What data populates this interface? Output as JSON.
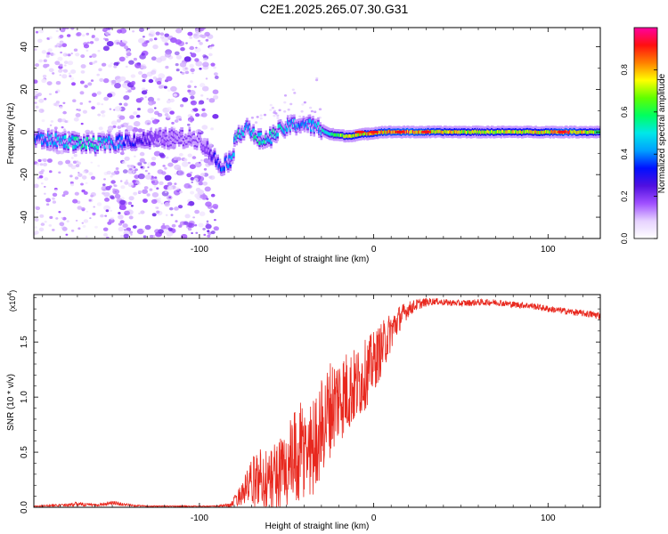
{
  "title": "C2E1.2025.265.07.30.G31",
  "colors": {
    "snr_line": "#e8281e",
    "axis": "#000000",
    "background": "#ffffff"
  },
  "chart_data": [
    {
      "type": "heatmap",
      "name": "spectrogram",
      "xlabel": "Height of straight line (km)",
      "ylabel": "Frequency (Hz)",
      "xlim": [
        -195,
        130
      ],
      "ylim": [
        -50,
        49
      ],
      "xticks": [
        -100,
        0,
        100
      ],
      "xticklabels": [
        "-100",
        "0",
        "100"
      ],
      "yticks": [
        -40,
        -20,
        0,
        20,
        40
      ],
      "yticklabels": [
        "-40",
        "-20",
        "0",
        "20",
        "40"
      ],
      "colorbar": {
        "label": "Normalized spectral amplitude",
        "range": [
          0.0,
          1.0
        ],
        "ticks": [
          0.0,
          0.2,
          0.4,
          0.6,
          0.8
        ],
        "ticklabels": [
          "0.0",
          "0.2",
          "0.4",
          "0.6",
          "0.8"
        ],
        "colormap": [
          "#ffffff",
          "#e6d2ff",
          "#a050ff",
          "#5010e0",
          "#0010ff",
          "#00a0ff",
          "#00e8e8",
          "#00ff60",
          "#60ff00",
          "#ffff00",
          "#ff8000",
          "#ff1010",
          "#ff00a0"
        ]
      },
      "signal_track": [
        {
          "x": -195,
          "y": -3,
          "amp": 0.35
        },
        {
          "x": -180,
          "y": -4,
          "amp": 0.45
        },
        {
          "x": -170,
          "y": -5,
          "amp": 0.5
        },
        {
          "x": -160,
          "y": -6,
          "amp": 0.5
        },
        {
          "x": -150,
          "y": -5,
          "amp": 0.45
        },
        {
          "x": -140,
          "y": -4,
          "amp": 0.3
        },
        {
          "x": -120,
          "y": -3,
          "amp": 0.15
        },
        {
          "x": -100,
          "y": -3,
          "amp": 0.1
        },
        {
          "x": -88,
          "y": -16,
          "amp": 0.35
        },
        {
          "x": -82,
          "y": -13,
          "amp": 0.4
        },
        {
          "x": -78,
          "y": -1,
          "amp": 0.5
        },
        {
          "x": -72,
          "y": 3,
          "amp": 0.45
        },
        {
          "x": -68,
          "y": -3,
          "amp": 0.5
        },
        {
          "x": -62,
          "y": -4,
          "amp": 0.5
        },
        {
          "x": -55,
          "y": 0,
          "amp": 0.5
        },
        {
          "x": -48,
          "y": 3,
          "amp": 0.45
        },
        {
          "x": -40,
          "y": 4,
          "amp": 0.4
        },
        {
          "x": -32,
          "y": 2,
          "amp": 0.45
        },
        {
          "x": -25,
          "y": -1,
          "amp": 0.55
        },
        {
          "x": -15,
          "y": -2,
          "amp": 0.7
        },
        {
          "x": -5,
          "y": -1,
          "amp": 0.75
        },
        {
          "x": 5,
          "y": 0,
          "amp": 0.8
        },
        {
          "x": 20,
          "y": 0,
          "amp": 0.85
        },
        {
          "x": 40,
          "y": 0,
          "amp": 0.75
        },
        {
          "x": 60,
          "y": 0,
          "amp": 0.7
        },
        {
          "x": 80,
          "y": 0,
          "amp": 0.72
        },
        {
          "x": 100,
          "y": 0,
          "amp": 0.75
        },
        {
          "x": 110,
          "y": 0,
          "amp": 0.85
        },
        {
          "x": 130,
          "y": 0,
          "amp": 0.65
        }
      ]
    },
    {
      "type": "line",
      "name": "snr",
      "xlabel": "Height of straight line (km)",
      "ylabel": "SNR (10 * v/v)",
      "yscale_label": "(x10",
      "yscale_exp": "4",
      "yscale_close": ")",
      "xlim": [
        -195,
        130
      ],
      "ylim": [
        0,
        1.93
      ],
      "xticks": [
        -100,
        0,
        100
      ],
      "xticklabels": [
        "-100",
        "0",
        "100"
      ],
      "yticks": [
        0.0,
        0.5,
        1.0,
        1.5
      ],
      "yticklabels": [
        "0.0",
        "0.5",
        "1.0",
        "1.5"
      ],
      "series": [
        {
          "name": "SNR",
          "x": [
            -195,
            -180,
            -170,
            -160,
            -150,
            -140,
            -130,
            -120,
            -110,
            -100,
            -90,
            -82,
            -76,
            -70,
            -65,
            -60,
            -55,
            -50,
            -45,
            -40,
            -35,
            -30,
            -25,
            -20,
            -15,
            -10,
            -5,
            0,
            5,
            10,
            15,
            20,
            25,
            30,
            35,
            40,
            50,
            60,
            70,
            80,
            90,
            100,
            110,
            120,
            130
          ],
          "values": [
            0.01,
            0.02,
            0.03,
            0.02,
            0.04,
            0.02,
            0.01,
            0.01,
            0.01,
            0.01,
            0.01,
            0.02,
            0.12,
            0.22,
            0.28,
            0.24,
            0.3,
            0.35,
            0.42,
            0.5,
            0.55,
            0.72,
            0.9,
            1.0,
            1.05,
            1.1,
            1.2,
            1.32,
            1.45,
            1.6,
            1.72,
            1.8,
            1.84,
            1.86,
            1.87,
            1.86,
            1.85,
            1.86,
            1.86,
            1.84,
            1.83,
            1.8,
            1.78,
            1.76,
            1.74
          ],
          "noise": [
            0.005,
            0.01,
            0.02,
            0.01,
            0.02,
            0.01,
            0.005,
            0.005,
            0.005,
            0.005,
            0.005,
            0.02,
            0.1,
            0.22,
            0.28,
            0.3,
            0.34,
            0.4,
            0.46,
            0.5,
            0.45,
            0.45,
            0.45,
            0.42,
            0.38,
            0.35,
            0.32,
            0.28,
            0.24,
            0.18,
            0.12,
            0.07,
            0.05,
            0.04,
            0.03,
            0.03,
            0.03,
            0.03,
            0.03,
            0.03,
            0.03,
            0.03,
            0.03,
            0.03,
            0.04
          ]
        }
      ]
    }
  ]
}
